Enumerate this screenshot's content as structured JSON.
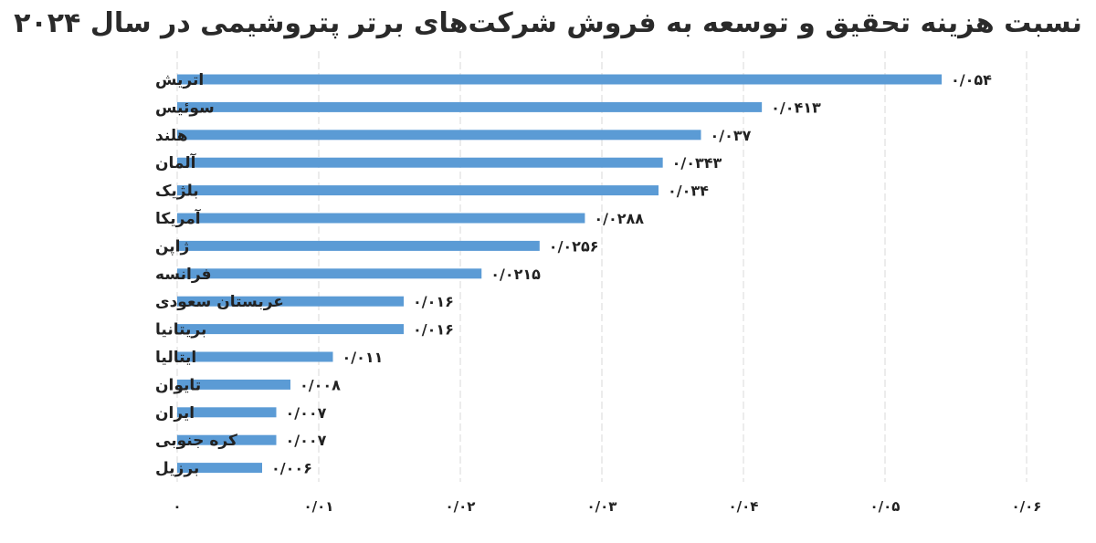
{
  "chart_data": {
    "type": "bar",
    "orientation": "horizontal",
    "title": "نسبت هزینه تحقیق و توسعه به فروش شرکت‌های برتر پتروشیمی در سال ۲۰۲۴",
    "categories": [
      "اتریش",
      "سوئیس",
      "هلند",
      "آلمان",
      "بلژیک",
      "آمریکا",
      "ژاپن",
      "فرانسه",
      "عربستان سعودی",
      "بریتانیا",
      "ایتالیا",
      "تایوان",
      "ایران",
      "کره جنوبی",
      "برزیل"
    ],
    "values": [
      0.054,
      0.0413,
      0.037,
      0.0343,
      0.034,
      0.0288,
      0.0256,
      0.0215,
      0.016,
      0.016,
      0.011,
      0.008,
      0.007,
      0.007,
      0.006
    ],
    "value_labels": [
      "۰/۰۵۴",
      "۰/۰۴۱۳",
      "۰/۰۳۷",
      "۰/۰۳۴۳",
      "۰/۰۳۴",
      "۰/۰۲۸۸",
      "۰/۰۲۵۶",
      "۰/۰۲۱۵",
      "۰/۰۱۶",
      "۰/۰۱۶",
      "۰/۰۱۱",
      "۰/۰۰۸",
      "۰/۰۰۷",
      "۰/۰۰۷",
      "۰/۰۰۶"
    ],
    "xlim": [
      0,
      0.06
    ],
    "xticks": [
      0,
      0.01,
      0.02,
      0.03,
      0.04,
      0.05,
      0.06
    ],
    "xtick_labels": [
      "۰",
      "۰/۰۱",
      "۰/۰۲",
      "۰/۰۳",
      "۰/۰۴",
      "۰/۰۵",
      "۰/۰۶"
    ],
    "xlabel": "",
    "ylabel": "",
    "grid": true,
    "legend": "none",
    "bar_color": "#5b9bd5"
  }
}
